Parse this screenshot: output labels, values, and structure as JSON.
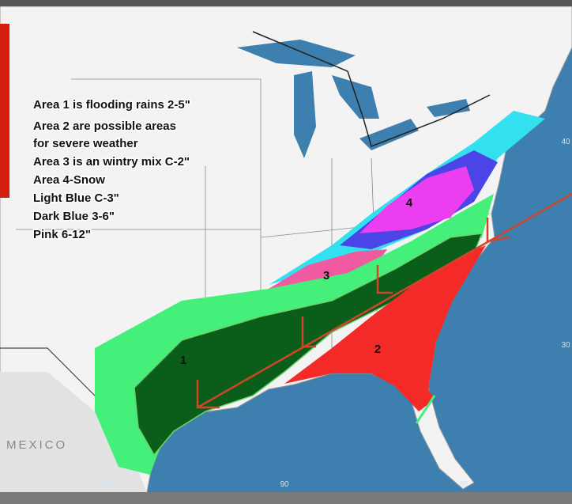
{
  "legend": {
    "lines": [
      "Area 1 is flooding rains 2-5\"",
      "Area 2 are possible areas",
      "for severe weather",
      "Area 3 is an wintry mix C-2\"",
      "Area 4-Snow",
      "Light Blue C-3\"",
      "Dark Blue 3-6\"",
      "Pink 6-12\""
    ]
  },
  "areas": {
    "labels": [
      "1",
      "2",
      "3",
      "4"
    ]
  },
  "map_labels": {
    "country": "MEXICO",
    "latitudes": [
      "40",
      "30"
    ],
    "longitudes": [
      "100",
      "90",
      "80"
    ]
  }
}
